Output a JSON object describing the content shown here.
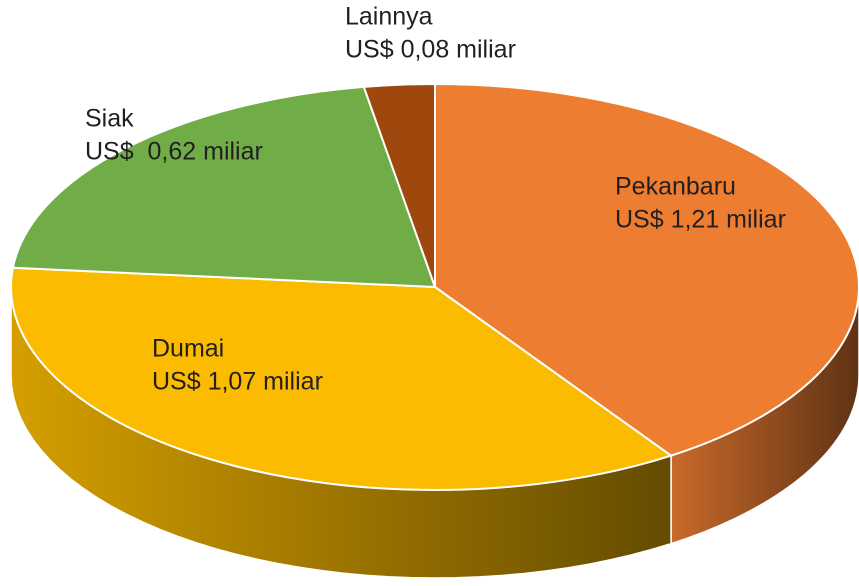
{
  "chart_data": {
    "type": "pie",
    "categories": [
      "Pekanbaru",
      "Dumai",
      "Siak",
      "Lainnya"
    ],
    "values": [
      1.21,
      1.07,
      0.62,
      0.08
    ],
    "value_labels": [
      "US$ 1,21 miliar",
      "US$ 1,07 miliar",
      "US$  0,62 miliar",
      "US$ 0,08 miliar"
    ],
    "colors": [
      "#ed7d31",
      "#fbbb00",
      "#70ad47",
      "#9e480e"
    ]
  }
}
